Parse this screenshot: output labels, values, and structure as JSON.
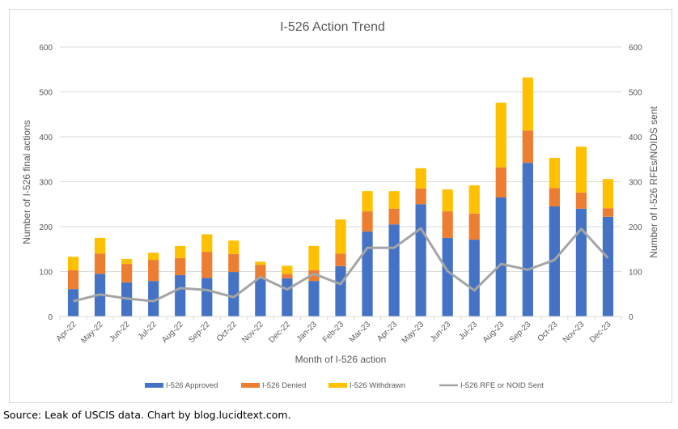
{
  "source_note": "Source: Leak of USCIS data. Chart by blog.lucidtext.com.",
  "chart_data": {
    "type": "bar",
    "stacked": true,
    "title": "I-526 Action Trend",
    "xlabel": "Month of I-526 action",
    "ylabel": "Number of I-526 final actions",
    "y2label": "Number of I-526 RFEs/NOIDS sent",
    "ylim": [
      0,
      600
    ],
    "y2lim": [
      0,
      600
    ],
    "yticks": [
      "0",
      "100",
      "200",
      "300",
      "400",
      "500",
      "600"
    ],
    "y2ticks": [
      "0",
      "100",
      "200",
      "300",
      "400",
      "500",
      "600"
    ],
    "grid": true,
    "legend_position": "bottom",
    "categories": [
      "Apr-22",
      "May-22",
      "Jun-22",
      "Jul-22",
      "Aug-22",
      "Sep-22",
      "Oct-22",
      "Nov-22",
      "Dec-22",
      "Jan-23",
      "Feb-23",
      "Mar-23",
      "Apr-23",
      "May-23",
      "Jun-23",
      "Jul-23",
      "Aug-23",
      "Sep-23",
      "Oct-23",
      "Nov-23",
      "Dec-23"
    ],
    "series": [
      {
        "name": "I-526 Approved",
        "kind": "bar",
        "color": "#4472c4",
        "values": [
          61,
          95,
          76,
          79,
          92,
          86,
          99,
          86,
          85,
          79,
          112,
          189,
          205,
          250,
          175,
          171,
          265,
          342,
          245,
          240,
          222
        ]
      },
      {
        "name": "I-526 Denied",
        "kind": "bar",
        "color": "#ed7d31",
        "values": [
          42,
          45,
          41,
          47,
          38,
          58,
          40,
          29,
          10,
          24,
          28,
          45,
          35,
          35,
          59,
          58,
          67,
          72,
          41,
          36,
          19
        ]
      },
      {
        "name": "I-526 Withdrawn",
        "kind": "bar",
        "color": "#ffc000",
        "values": [
          30,
          35,
          11,
          16,
          27,
          39,
          30,
          7,
          18,
          54,
          76,
          45,
          39,
          45,
          49,
          63,
          144,
          118,
          67,
          102,
          65
        ]
      },
      {
        "name": "I-526 RFE or NOID Sent",
        "kind": "line",
        "axis": "secondary",
        "color": "#a5a5a5",
        "values": [
          34,
          49,
          40,
          34,
          63,
          59,
          43,
          88,
          60,
          95,
          72,
          153,
          153,
          196,
          101,
          58,
          117,
          104,
          126,
          195,
          130
        ]
      }
    ]
  }
}
